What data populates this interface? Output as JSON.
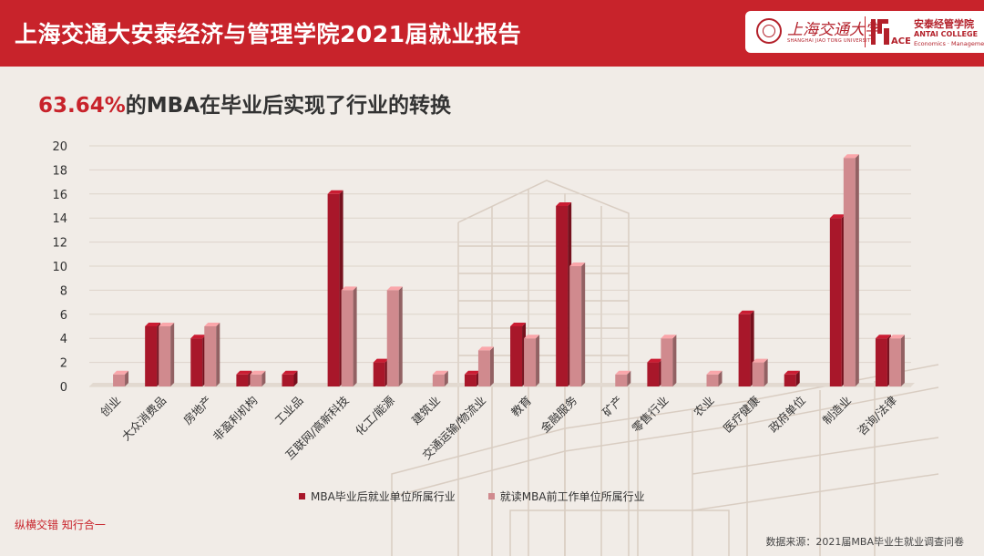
{
  "header": {
    "title": "上海交通大安泰经济与管理学院2021届就业报告",
    "university_name": "上海交通大学",
    "university_name_en": "SHANGHAI JIAO TONG UNIVERSITY",
    "college_name_cn": "安泰经管学院",
    "college_name_en": "ANTAI COLLEGE",
    "college_name_en2": "Economics · Management",
    "college_mark": "ACEM"
  },
  "subtitle": {
    "highlight": "63.64%",
    "text": "的MBA在毕业后实现了行业的转换"
  },
  "colors": {
    "brand_red": "#c8232b",
    "series_dark": "#a8172a",
    "series_light": "#d08a8e"
  },
  "chart_data": {
    "type": "bar",
    "categories": [
      "创业",
      "大众消费品",
      "房地产",
      "非盈利机构",
      "工业品",
      "互联网/高新科技",
      "化工/能源",
      "建筑业",
      "交通运输/物流业",
      "教育",
      "金融服务",
      "矿产",
      "零售行业",
      "农业",
      "医疗健康",
      "政府单位",
      "制造业",
      "咨询/法律"
    ],
    "series": [
      {
        "name": "MBA毕业后就业单位所属行业",
        "values": [
          0,
          5,
          4,
          1,
          1,
          16,
          2,
          0,
          1,
          5,
          15,
          0,
          2,
          0,
          6,
          1,
          14,
          4
        ]
      },
      {
        "name": "就读MBA前工作单位所属行业",
        "values": [
          1,
          5,
          5,
          1,
          0,
          8,
          8,
          1,
          3,
          4,
          10,
          1,
          4,
          1,
          2,
          0,
          19,
          4
        ]
      }
    ],
    "ylim": [
      0,
      20
    ],
    "yticks": [
      0,
      2,
      4,
      6,
      8,
      10,
      12,
      14,
      16,
      18,
      20
    ],
    "grid": true,
    "legend_position": "bottom"
  },
  "footer": {
    "slogan": "纵横交错 知行合一",
    "source": "数据来源：2021届MBA毕业生就业调查问卷"
  }
}
